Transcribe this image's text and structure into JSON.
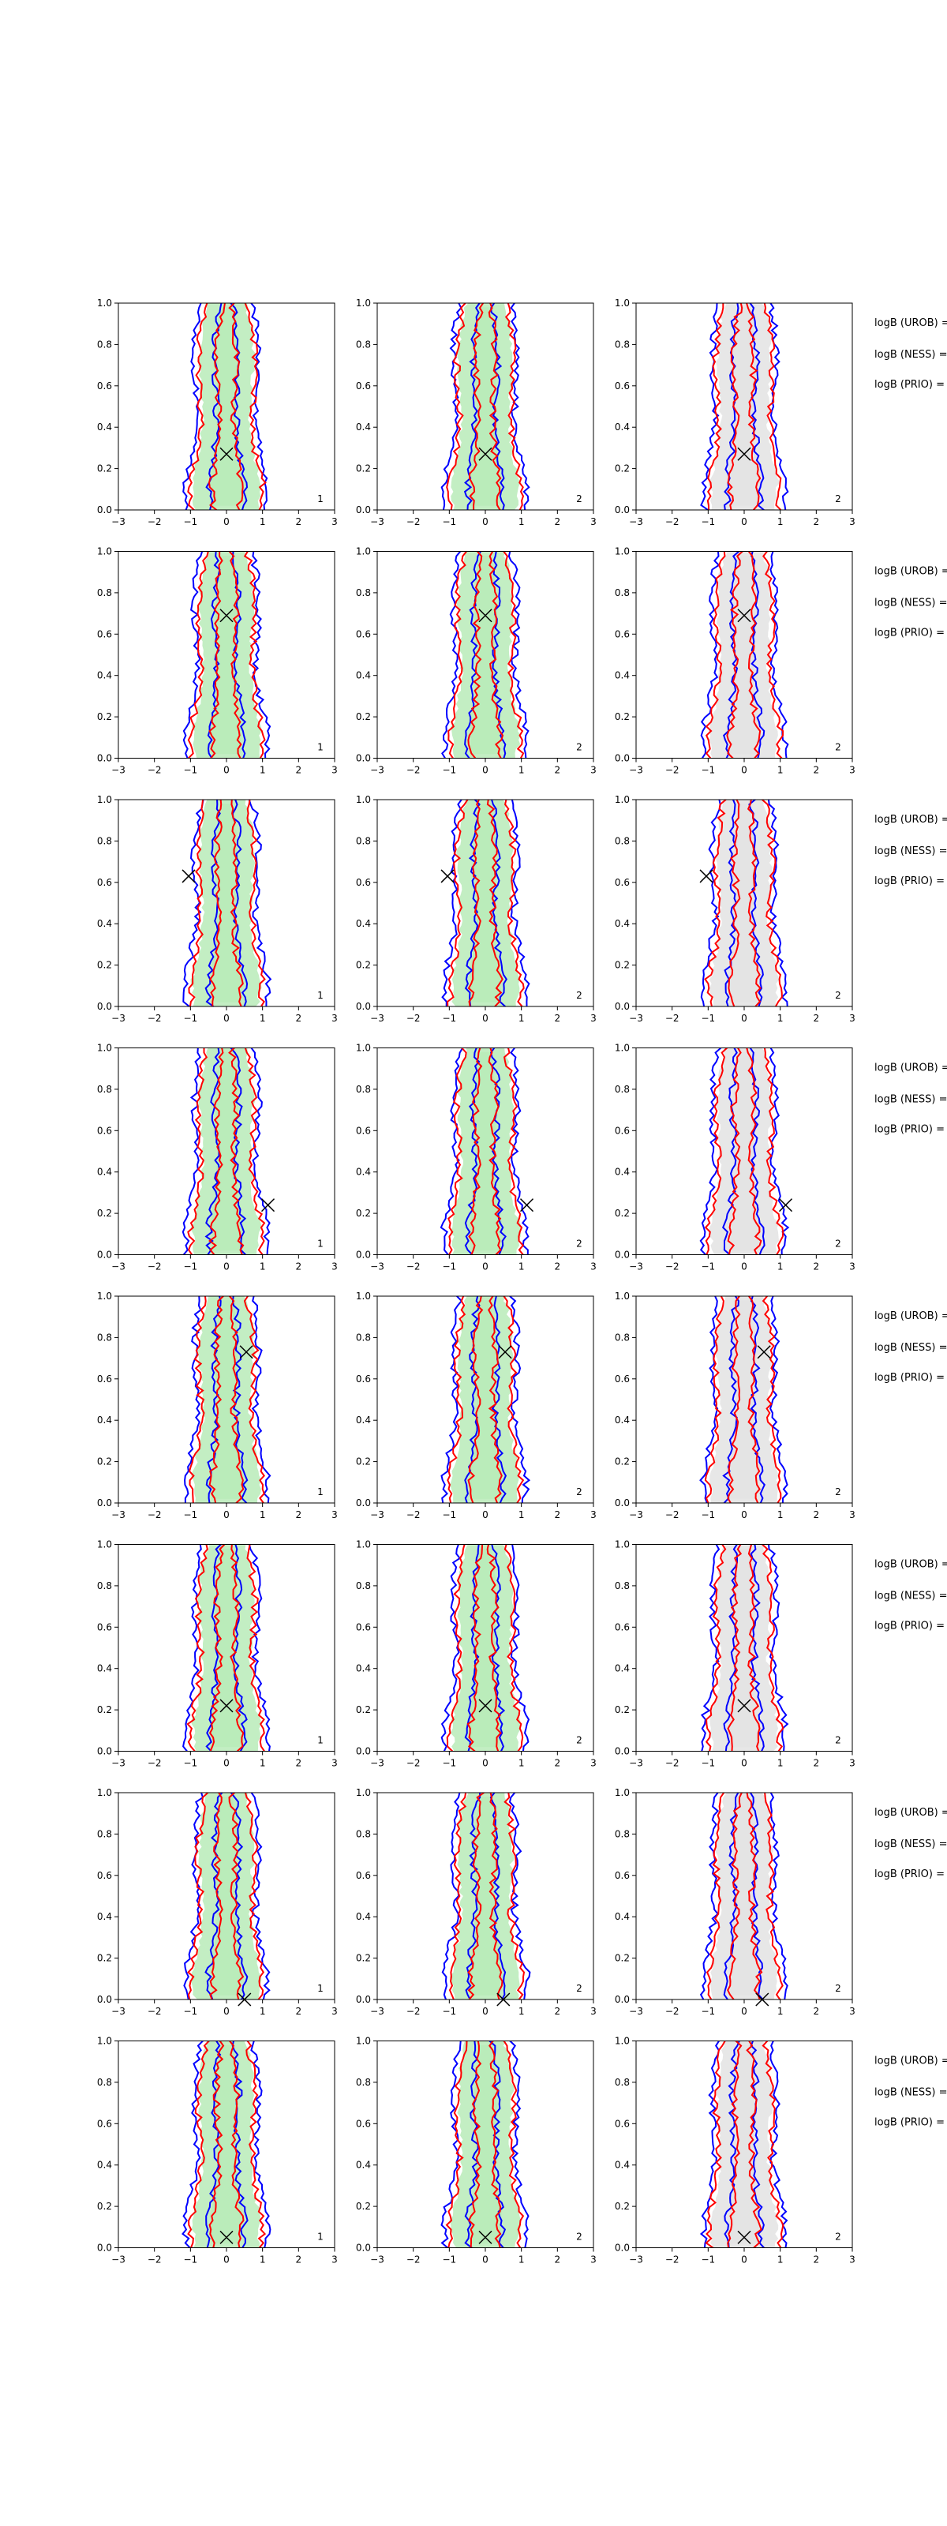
{
  "colors": {
    "contour_a": "#ff0000",
    "contour_b": "#0000ff",
    "fill_col1": "#b9ebb9",
    "fill_col2": "#b9ebb9",
    "fill_col3": "#e3e3e3",
    "marker": "#000000",
    "axes": "#000000"
  },
  "chart_data": {
    "type": "contour",
    "layout": "8 rows x 3 columns of panels, text notes to the right of each row",
    "grid": false,
    "legend": "none",
    "xlim": [
      -3,
      3
    ],
    "ylim": [
      0,
      1
    ],
    "x_ticks": [
      "−3",
      "−2",
      "−1",
      "0",
      "1",
      "2",
      "3"
    ],
    "y_ticks": [
      "0.0",
      "0.2",
      "0.4",
      "0.6",
      "0.8",
      "1.0"
    ],
    "panel_labels": [
      "1",
      "2",
      "2"
    ],
    "row_notes": [
      "logB (UROB) =",
      "logB (NESS) =",
      "logB (PRIO) ="
    ],
    "rows": [
      {
        "marker": [
          0.0,
          0.27
        ]
      },
      {
        "marker": [
          0.0,
          0.69
        ]
      },
      {
        "marker": [
          -1.05,
          0.63
        ]
      },
      {
        "marker": [
          1.15,
          0.24
        ]
      },
      {
        "marker": [
          0.55,
          0.73
        ]
      },
      {
        "marker": [
          0.0,
          0.22
        ]
      },
      {
        "marker": [
          0.5,
          0.0
        ]
      },
      {
        "marker": [
          0.0,
          0.05
        ]
      }
    ]
  }
}
